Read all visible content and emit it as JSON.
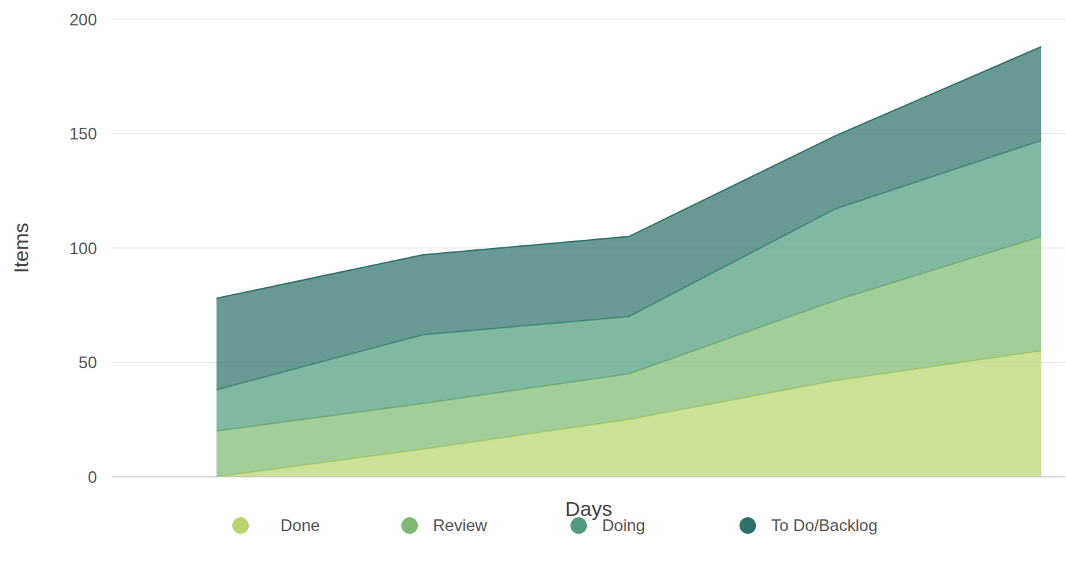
{
  "chart_data": {
    "type": "area",
    "stacked": true,
    "x_label": "Days",
    "y_label": "Items",
    "categories": [
      null,
      null,
      null,
      null,
      null
    ],
    "series": [
      {
        "name": "Done",
        "color": "#b5d56f",
        "values": [
          0,
          12,
          25,
          42,
          55
        ]
      },
      {
        "name": "Review",
        "color": "#7fba72",
        "values": [
          20,
          20,
          20,
          35,
          50
        ]
      },
      {
        "name": "Doing",
        "color": "#4f9c7c",
        "values": [
          18,
          30,
          25,
          40,
          42
        ]
      },
      {
        "name": "To Do/Backlog",
        "color": "#2e716c",
        "values": [
          40,
          35,
          35,
          32,
          41
        ]
      }
    ],
    "ylim": [
      0,
      200
    ],
    "yticks": [
      0,
      50,
      100,
      150,
      200
    ],
    "grid": true,
    "legend": "bottom",
    "tick_labels": "y"
  }
}
